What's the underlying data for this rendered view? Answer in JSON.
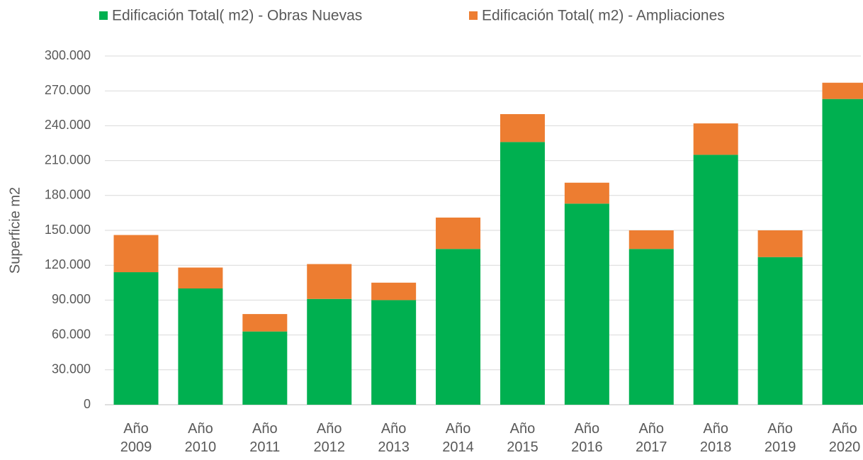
{
  "chart_data": {
    "type": "stacked_bar",
    "y_axis_label": "Superficie m2",
    "categories": [
      "Año 2009",
      "Año 2010",
      "Año 2011",
      "Año 2012",
      "Año 2013",
      "Año 2014",
      "Año 2015",
      "Año 2016",
      "Año 2017",
      "Año 2018",
      "Año 2019",
      "Año 2020"
    ],
    "series": [
      {
        "name": "Edificación Total( m2) - Obras Nuevas",
        "color": "#00b050",
        "values": [
          114000,
          100000,
          63000,
          91000,
          90000,
          134000,
          226000,
          173000,
          134000,
          215000,
          127000,
          263000
        ]
      },
      {
        "name": "Edificación Total( m2) - Ampliaciones",
        "color": "#ed7d31",
        "values": [
          32000,
          18000,
          15000,
          30000,
          15000,
          27000,
          24000,
          18000,
          16000,
          27000,
          23000,
          14000
        ]
      }
    ],
    "ylim": [
      0,
      300000
    ],
    "yticks": [
      0,
      {
        "value": 30000,
        "label": "30.000"
      },
      {
        "value": 60000,
        "label": "60.000"
      },
      {
        "value": 90000,
        "label": "90.000"
      },
      {
        "value": 120000,
        "label": "120.000"
      },
      {
        "value": 150000,
        "label": "150.000"
      },
      {
        "value": 180000,
        "label": "180.000"
      },
      {
        "value": 210000,
        "label": "210.000"
      },
      {
        "value": 240000,
        "label": "240.000"
      },
      {
        "value": 270000,
        "label": "270.000"
      },
      {
        "value": 300000,
        "label": "300.000"
      }
    ],
    "grid": true,
    "legend": "top"
  }
}
